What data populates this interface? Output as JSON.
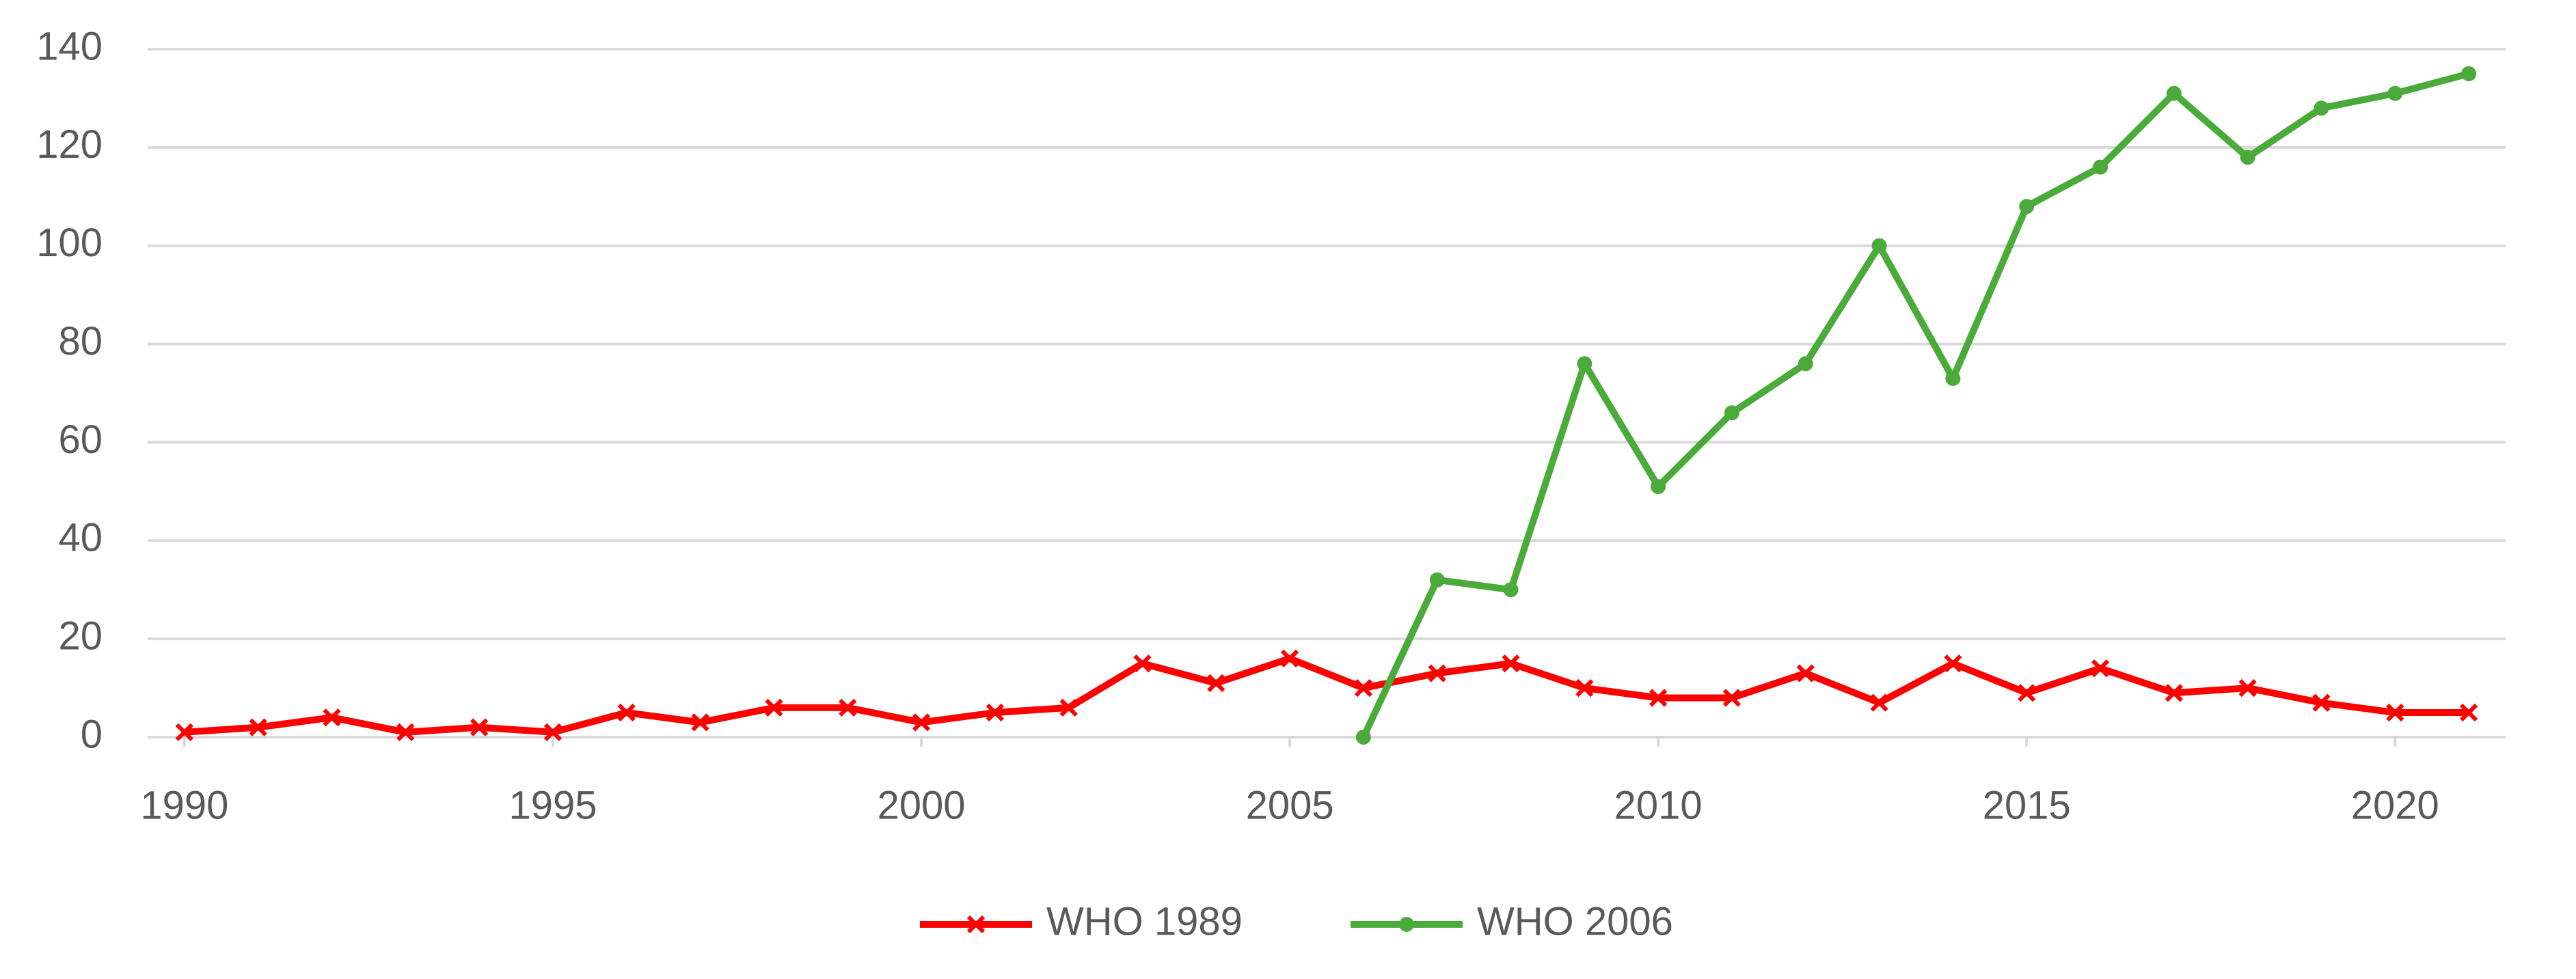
{
  "chart_data": {
    "type": "line",
    "x": [
      1990,
      1991,
      1992,
      1993,
      1994,
      1995,
      1996,
      1997,
      1998,
      1999,
      2000,
      2001,
      2002,
      2003,
      2004,
      2005,
      2006,
      2007,
      2008,
      2009,
      2010,
      2011,
      2012,
      2013,
      2014,
      2015,
      2016,
      2017,
      2018,
      2019,
      2020,
      2021
    ],
    "series": [
      {
        "name": "WHO 1989",
        "color": "#ff0000",
        "marker": "x",
        "values": [
          1,
          2,
          4,
          1,
          2,
          1,
          5,
          3,
          6,
          6,
          3,
          5,
          6,
          15,
          11,
          16,
          10,
          13,
          15,
          10,
          8,
          8,
          13,
          7,
          15,
          9,
          14,
          9,
          10,
          7,
          5,
          5
        ]
      },
      {
        "name": "WHO 2006",
        "color": "#4aab3a",
        "marker": "circle",
        "values": [
          null,
          null,
          null,
          null,
          null,
          null,
          null,
          null,
          null,
          null,
          null,
          null,
          null,
          null,
          null,
          null,
          0,
          32,
          30,
          76,
          51,
          66,
          76,
          100,
          73,
          108,
          116,
          131,
          118,
          128,
          131,
          135
        ]
      }
    ],
    "xlim": [
      1989.5,
      2021.5
    ],
    "xticks": [
      1990,
      1995,
      2000,
      2005,
      2010,
      2015,
      2020
    ],
    "ylim": [
      0,
      140
    ],
    "yticks": [
      0,
      20,
      40,
      60,
      80,
      100,
      120,
      140
    ],
    "grid": true,
    "legend": "bottom"
  }
}
